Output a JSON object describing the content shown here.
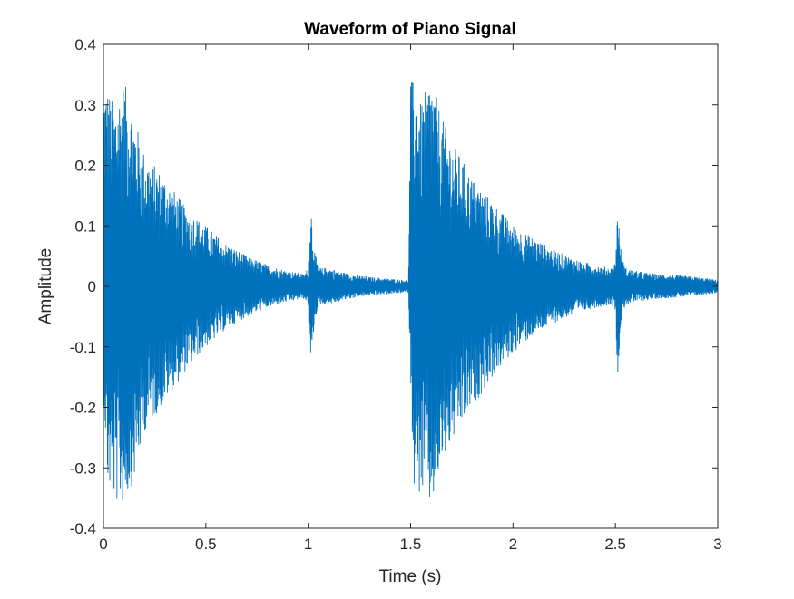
{
  "chart_data": {
    "type": "line",
    "title": "Waveform of Piano Signal",
    "xlabel": "Time (s)",
    "ylabel": "Amplitude",
    "xlim": [
      0,
      3
    ],
    "ylim": [
      -0.4,
      0.4
    ],
    "x_ticks": [
      0,
      0.5,
      1,
      1.5,
      2,
      2.5,
      3
    ],
    "x_tick_labels": [
      "0",
      "0.5",
      "1",
      "1.5",
      "2",
      "2.5",
      "3"
    ],
    "y_ticks": [
      0.4,
      0.3,
      0.2,
      0.1,
      0,
      -0.1,
      -0.2,
      -0.3,
      -0.4
    ],
    "y_tick_labels": [
      "0.4",
      "0.3",
      "0.2",
      "0.1",
      "0",
      "-0.1",
      "-0.2",
      "-0.3",
      "-0.4"
    ],
    "grid": false,
    "legend": "none",
    "series": [
      {
        "color": "#0072BD",
        "envelope": {
          "description_units": "seconds, amplitude",
          "x": [
            0,
            0.02,
            0.05,
            0.1,
            0.15,
            0.2,
            0.3,
            0.4,
            0.5,
            0.6,
            0.7,
            0.8,
            0.9,
            0.98,
            1.0,
            1.01,
            1.03,
            1.05,
            1.1,
            1.2,
            1.3,
            1.4,
            1.49,
            1.5,
            1.52,
            1.55,
            1.6,
            1.65,
            1.7,
            1.8,
            1.9,
            2.0,
            2.1,
            2.2,
            2.3,
            2.4,
            2.48,
            2.5,
            2.51,
            2.53,
            2.55,
            2.6,
            2.7,
            2.8,
            2.9,
            3.0
          ],
          "upper": [
            0.34,
            0.33,
            0.3,
            0.34,
            0.28,
            0.22,
            0.18,
            0.13,
            0.1,
            0.07,
            0.05,
            0.035,
            0.025,
            0.02,
            0.03,
            0.15,
            0.06,
            0.03,
            0.03,
            0.02,
            0.015,
            0.012,
            0.01,
            0.34,
            0.34,
            0.3,
            0.35,
            0.28,
            0.24,
            0.18,
            0.14,
            0.1,
            0.08,
            0.06,
            0.045,
            0.035,
            0.03,
            0.04,
            0.13,
            0.05,
            0.03,
            0.025,
            0.02,
            0.018,
            0.015,
            0.01
          ],
          "lower": [
            -0.17,
            -0.33,
            -0.36,
            -0.36,
            -0.32,
            -0.24,
            -0.19,
            -0.14,
            -0.1,
            -0.07,
            -0.05,
            -0.035,
            -0.025,
            -0.02,
            -0.03,
            -0.15,
            -0.06,
            -0.03,
            -0.03,
            -0.02,
            -0.015,
            -0.012,
            -0.01,
            -0.16,
            -0.36,
            -0.34,
            -0.37,
            -0.3,
            -0.26,
            -0.2,
            -0.15,
            -0.11,
            -0.08,
            -0.06,
            -0.045,
            -0.035,
            -0.03,
            -0.04,
            -0.15,
            -0.05,
            -0.03,
            -0.025,
            -0.02,
            -0.018,
            -0.015,
            -0.01
          ]
        }
      }
    ]
  }
}
